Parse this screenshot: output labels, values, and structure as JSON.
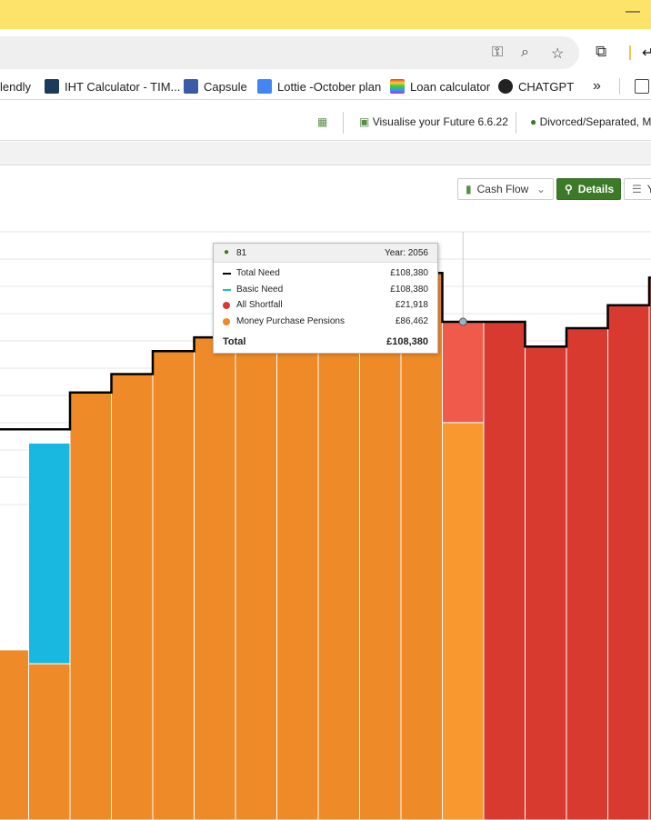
{
  "browser": {
    "bookmarks": [
      {
        "label": "lendly",
        "color": ""
      },
      {
        "label": "IHT Calculator - TIM...",
        "color": "#1b3b5a"
      },
      {
        "label": "Capsule",
        "color": "#3a5ba8"
      },
      {
        "label": "Lottie -October plan",
        "color": "#4285f4"
      },
      {
        "label": "Loan calculator",
        "color": "#a0306c"
      },
      {
        "label": "CHATGPT",
        "color": "#222222"
      }
    ],
    "overflow_label": "»"
  },
  "app": {
    "title_label": "Visualise your Future 6.6.22",
    "client_label": "Divorced/Separated, M"
  },
  "controls": {
    "view_select": "Cash Flow",
    "details_button": "Details",
    "cut_button": "Y"
  },
  "tooltip": {
    "age": "81",
    "year_label": "Year: 2056",
    "rows": [
      {
        "label": "Total Need",
        "value": "£108,380",
        "color": "#000000",
        "kind": "line"
      },
      {
        "label": "Basic Need",
        "value": "£108,380",
        "color": "#18b8e0",
        "kind": "line"
      },
      {
        "label": "All Shortfall",
        "value": "£21,918",
        "color": "#d83a30",
        "kind": "dot"
      },
      {
        "label": "Money Purchase Pensions",
        "value": "£86,462",
        "color": "#ee8a27",
        "kind": "dot"
      }
    ],
    "total_label": "Total",
    "total_value": "£108,380"
  },
  "chart_data": {
    "type": "bar",
    "title": "",
    "note": "Stacked annual cash-flow columns; values in £ (unlabelled axis, estimated relative to tooltip).",
    "year_hovered": 2056,
    "series": [
      {
        "name": "Basic Need",
        "color": "#18b8e0",
        "values": [
          null,
          48000,
          null,
          null,
          null,
          null,
          null,
          null,
          null,
          null,
          null,
          null,
          null,
          null,
          null,
          null,
          null
        ]
      },
      {
        "name": "Money Purchase Pensions",
        "color": "#ee8a27",
        "values": [
          37000,
          34000,
          93000,
          97000,
          102000,
          105000,
          108000,
          110000,
          113000,
          116000,
          119000,
          86462,
          0,
          0,
          0,
          0,
          0
        ]
      },
      {
        "name": "All Shortfall",
        "color": "#d83a30",
        "values": [
          0,
          0,
          0,
          0,
          0,
          0,
          0,
          0,
          0,
          0,
          0,
          21918,
          108380,
          103000,
          107000,
          112000,
          118000
        ]
      }
    ],
    "total_need": [
      85000,
      85000,
      93000,
      97000,
      102000,
      105000,
      108000,
      110000,
      113000,
      116000,
      119000,
      108380,
      108380,
      103000,
      107000,
      112000,
      118000
    ]
  }
}
